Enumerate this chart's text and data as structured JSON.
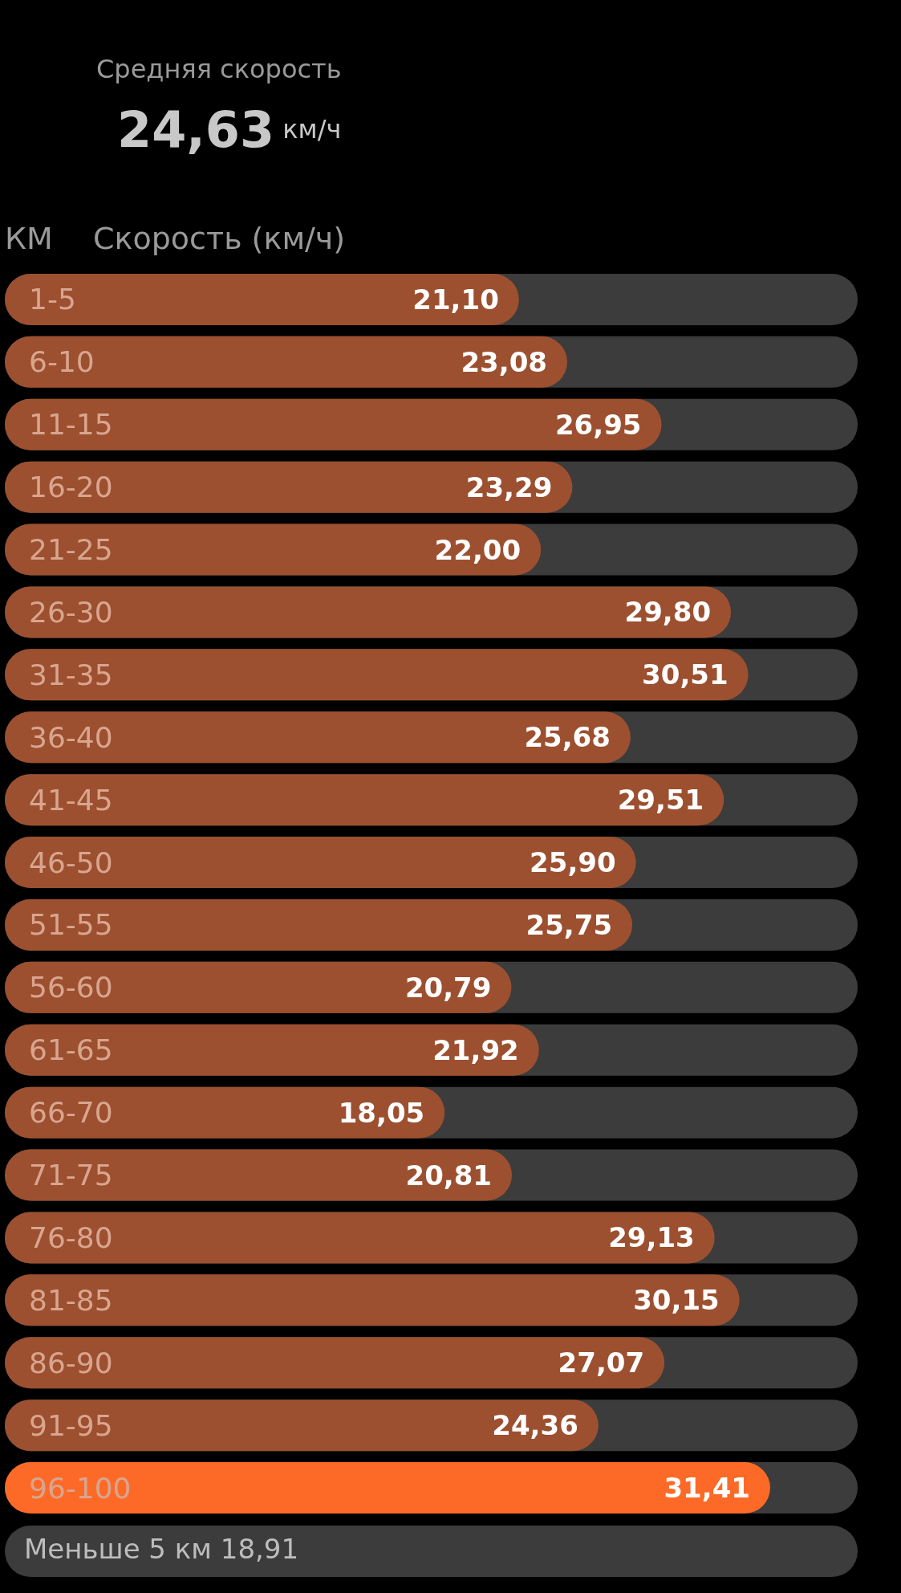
{
  "chart_data": {
    "type": "bar",
    "orientation": "horizontal",
    "title": "Средняя скорость",
    "subtitle": "24,63 км/ч",
    "ylabel": "КМ",
    "xlabel": "Скорость (км/ч)",
    "categories": [
      "1-5",
      "6-10",
      "11-15",
      "16-20",
      "21-25",
      "26-30",
      "31-35",
      "36-40",
      "41-45",
      "46-50",
      "51-55",
      "56-60",
      "61-65",
      "66-70",
      "71-75",
      "76-80",
      "81-85",
      "86-90",
      "91-95",
      "96-100"
    ],
    "values": [
      21.1,
      23.08,
      26.95,
      23.29,
      22.0,
      29.8,
      30.51,
      25.68,
      29.51,
      25.9,
      25.75,
      20.79,
      21.92,
      18.05,
      20.81,
      29.13,
      30.15,
      27.07,
      24.36,
      31.41
    ],
    "value_labels": [
      "21,10",
      "23,08",
      "26,95",
      "23,29",
      "22,00",
      "29,80",
      "30,51",
      "25,68",
      "29,51",
      "25,90",
      "25,75",
      "20,79",
      "21,92",
      "18,05",
      "20,81",
      "29,13",
      "30,15",
      "27,07",
      "24,36",
      "31,41"
    ],
    "colors": [
      "#9c5030",
      "#9c5030",
      "#9c5030",
      "#9c5030",
      "#9c5030",
      "#9c5030",
      "#9c5030",
      "#9c5030",
      "#9c5030",
      "#9c5030",
      "#9c5030",
      "#9c5030",
      "#9c5030",
      "#9c5030",
      "#9c5030",
      "#9c5030",
      "#9c5030",
      "#9c5030",
      "#9c5030",
      "#fd6a27"
    ],
    "annotations": [
      "Меньше 5 км 18,91"
    ]
  }
}
